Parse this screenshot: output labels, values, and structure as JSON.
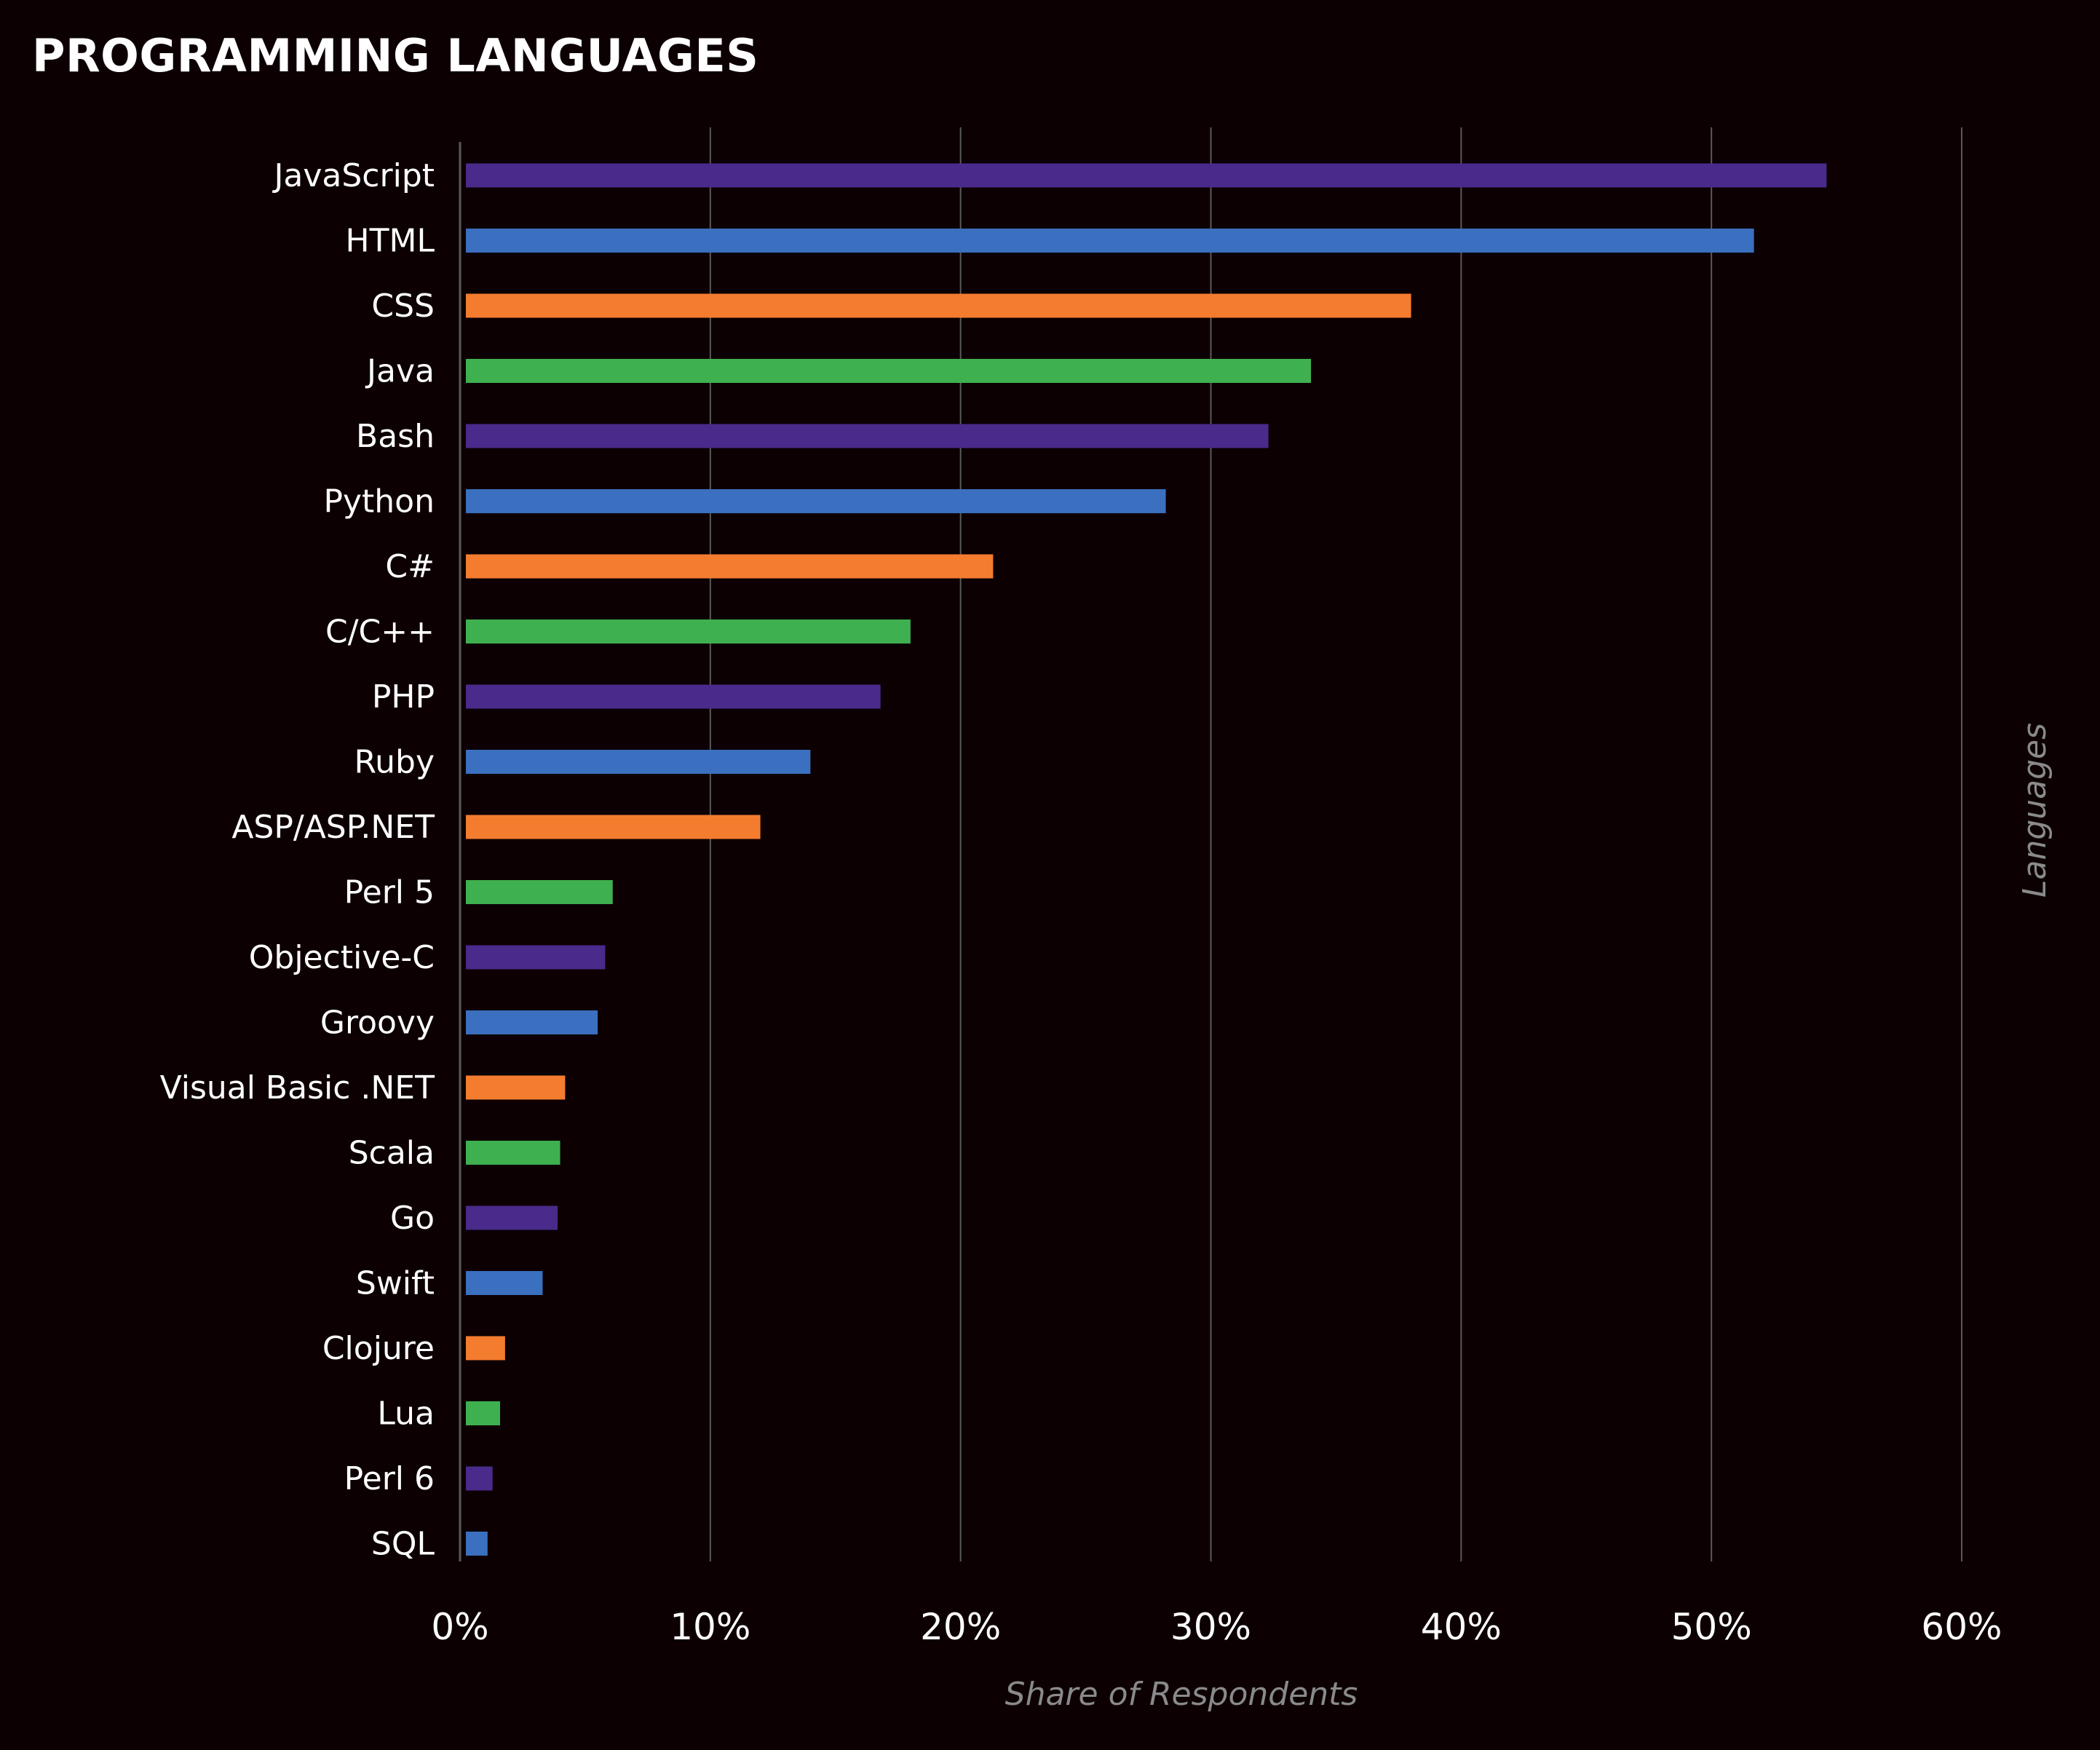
{
  "chart_data": {
    "type": "bar",
    "orientation": "horizontal",
    "title": "PROGRAMMING LANGUAGES",
    "xlabel": "Share of Respondents",
    "ylabel": "Languages",
    "xlim": [
      0,
      60
    ],
    "x_ticks": [
      "0%",
      "10%",
      "20%",
      "30%",
      "40%",
      "50%",
      "60%"
    ],
    "grid": "vertical",
    "categories": [
      "JavaScript",
      "HTML",
      "CSS",
      "Java",
      "Bash",
      "Python",
      "C#",
      "C/C++",
      "PHP",
      "Ruby",
      "ASP/ASP.NET",
      "Perl 5",
      "Objective-C",
      "Groovy",
      "Visual Basic .NET",
      "Scala",
      "Go",
      "Swift",
      "Clojure",
      "Lua",
      "Perl 6",
      "SQL"
    ],
    "values": [
      54.6,
      51.7,
      38.0,
      34.0,
      32.3,
      28.2,
      21.3,
      18.0,
      16.8,
      14.0,
      12.0,
      6.1,
      5.8,
      5.5,
      4.2,
      4.0,
      3.9,
      3.3,
      1.8,
      1.6,
      1.3,
      1.1
    ],
    "bar_colors": [
      "#4a2a8a",
      "#3b6fbf",
      "#f47c2f",
      "#3fb04f",
      "#4a2a8a",
      "#3b6fbf",
      "#f47c2f",
      "#3fb04f",
      "#4a2a8a",
      "#3b6fbf",
      "#f47c2f",
      "#3fb04f",
      "#4a2a8a",
      "#3b6fbf",
      "#f47c2f",
      "#3fb04f",
      "#4a2a8a",
      "#3b6fbf",
      "#f47c2f",
      "#3fb04f",
      "#4a2a8a",
      "#3b6fbf"
    ],
    "colors": {
      "background": "#0c0003",
      "gridline": "#5a5a5a",
      "axis_title": "#8a8a8a",
      "text": "#ffffff"
    }
  }
}
